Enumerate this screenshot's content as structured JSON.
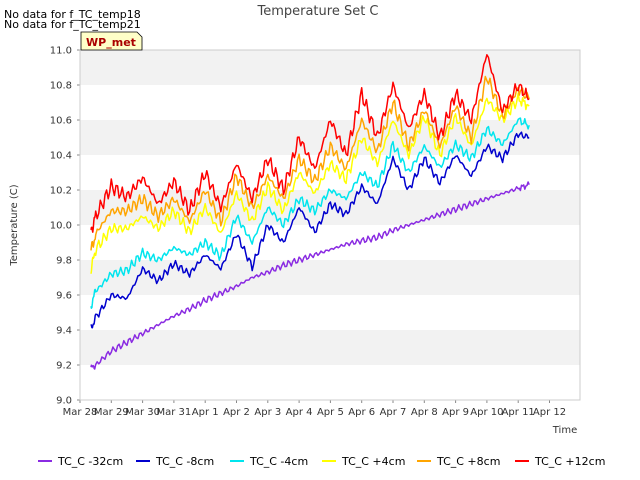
{
  "notes": [
    "No data for f_TC_temp18",
    "No data for f_TC_temp21"
  ],
  "badge": "WP_met",
  "chart_data": {
    "type": "line",
    "title": "Temperature Set C",
    "xlabel": "Time",
    "ylabel": "Temperature (C)",
    "x_ticks": [
      "Mar 28",
      "Mar 29",
      "Mar 30",
      "Mar 31",
      "Apr 1",
      "Apr 2",
      "Apr 3",
      "Apr 4",
      "Apr 5",
      "Apr 6",
      "Apr 7",
      "Apr 8",
      "Apr 9",
      "Apr 10",
      "Apr 11",
      "Apr 12"
    ],
    "xlim": [
      0,
      15
    ],
    "ylim": [
      9.0,
      11.0
    ],
    "y_ticks": [
      "9.0",
      "9.2",
      "9.4",
      "9.6",
      "9.8",
      "10.0",
      "10.2",
      "10.4",
      "10.6",
      "10.8",
      "11.0"
    ],
    "grid": "horizontal bands",
    "legend_position": "bottom",
    "x_day_offsets": [
      0.35,
      0.5,
      1,
      1.5,
      2,
      2.5,
      3,
      3.5,
      4,
      4.5,
      5,
      5.5,
      6,
      6.5,
      7,
      7.5,
      8,
      8.5,
      9,
      9.5,
      10,
      10.5,
      11,
      11.5,
      12,
      12.5,
      13,
      13.5,
      14,
      14.35
    ],
    "series": [
      {
        "name": "TC_C -32cm",
        "color": "#8a2be2",
        "values": [
          9.18,
          9.2,
          9.28,
          9.33,
          9.38,
          9.43,
          9.48,
          9.52,
          9.57,
          9.61,
          9.65,
          9.7,
          9.73,
          9.77,
          9.8,
          9.83,
          9.86,
          9.89,
          9.91,
          9.93,
          9.97,
          10.0,
          10.03,
          10.06,
          10.09,
          10.12,
          10.15,
          10.18,
          10.21,
          10.23
        ]
      },
      {
        "name": "TC_C -8cm",
        "color": "#0000cd",
        "values": [
          9.41,
          9.47,
          9.6,
          9.58,
          9.75,
          9.68,
          9.78,
          9.72,
          9.83,
          9.75,
          9.95,
          9.76,
          10.0,
          9.9,
          10.1,
          9.96,
          10.12,
          10.06,
          10.22,
          10.12,
          10.38,
          10.2,
          10.38,
          10.24,
          10.4,
          10.28,
          10.45,
          10.38,
          10.52,
          10.5
        ]
      },
      {
        "name": "TC_C -4cm",
        "color": "#00e5ee",
        "values": [
          9.54,
          9.62,
          9.72,
          9.74,
          9.84,
          9.8,
          9.87,
          9.83,
          9.9,
          9.82,
          10.05,
          9.9,
          10.1,
          10.0,
          10.15,
          10.08,
          10.2,
          10.15,
          10.3,
          10.22,
          10.46,
          10.3,
          10.45,
          10.33,
          10.46,
          10.38,
          10.55,
          10.46,
          10.6,
          10.57
        ]
      },
      {
        "name": "TC_C +4cm",
        "color": "#ffff00",
        "values": [
          9.74,
          9.86,
          9.98,
          9.98,
          10.05,
          9.98,
          10.08,
          9.96,
          10.1,
          9.95,
          10.18,
          10.02,
          10.22,
          10.08,
          10.3,
          10.18,
          10.35,
          10.26,
          10.5,
          10.35,
          10.6,
          10.4,
          10.62,
          10.4,
          10.62,
          10.45,
          10.72,
          10.6,
          10.72,
          10.68
        ]
      },
      {
        "name": "TC_C +8cm",
        "color": "#ffa500",
        "values": [
          9.85,
          9.95,
          10.08,
          10.08,
          10.15,
          10.05,
          10.15,
          10.02,
          10.2,
          10.02,
          10.28,
          10.1,
          10.28,
          10.15,
          10.38,
          10.25,
          10.45,
          10.32,
          10.6,
          10.42,
          10.7,
          10.45,
          10.66,
          10.45,
          10.68,
          10.5,
          10.85,
          10.62,
          10.78,
          10.72
        ]
      },
      {
        "name": "TC_C +12cm",
        "color": "#ff0000",
        "values": [
          9.97,
          10.05,
          10.22,
          10.16,
          10.27,
          10.12,
          10.25,
          10.08,
          10.3,
          10.1,
          10.35,
          10.15,
          10.38,
          10.2,
          10.5,
          10.32,
          10.6,
          10.4,
          10.75,
          10.5,
          10.8,
          10.55,
          10.75,
          10.5,
          10.75,
          10.6,
          10.98,
          10.65,
          10.8,
          10.72
        ]
      }
    ]
  }
}
